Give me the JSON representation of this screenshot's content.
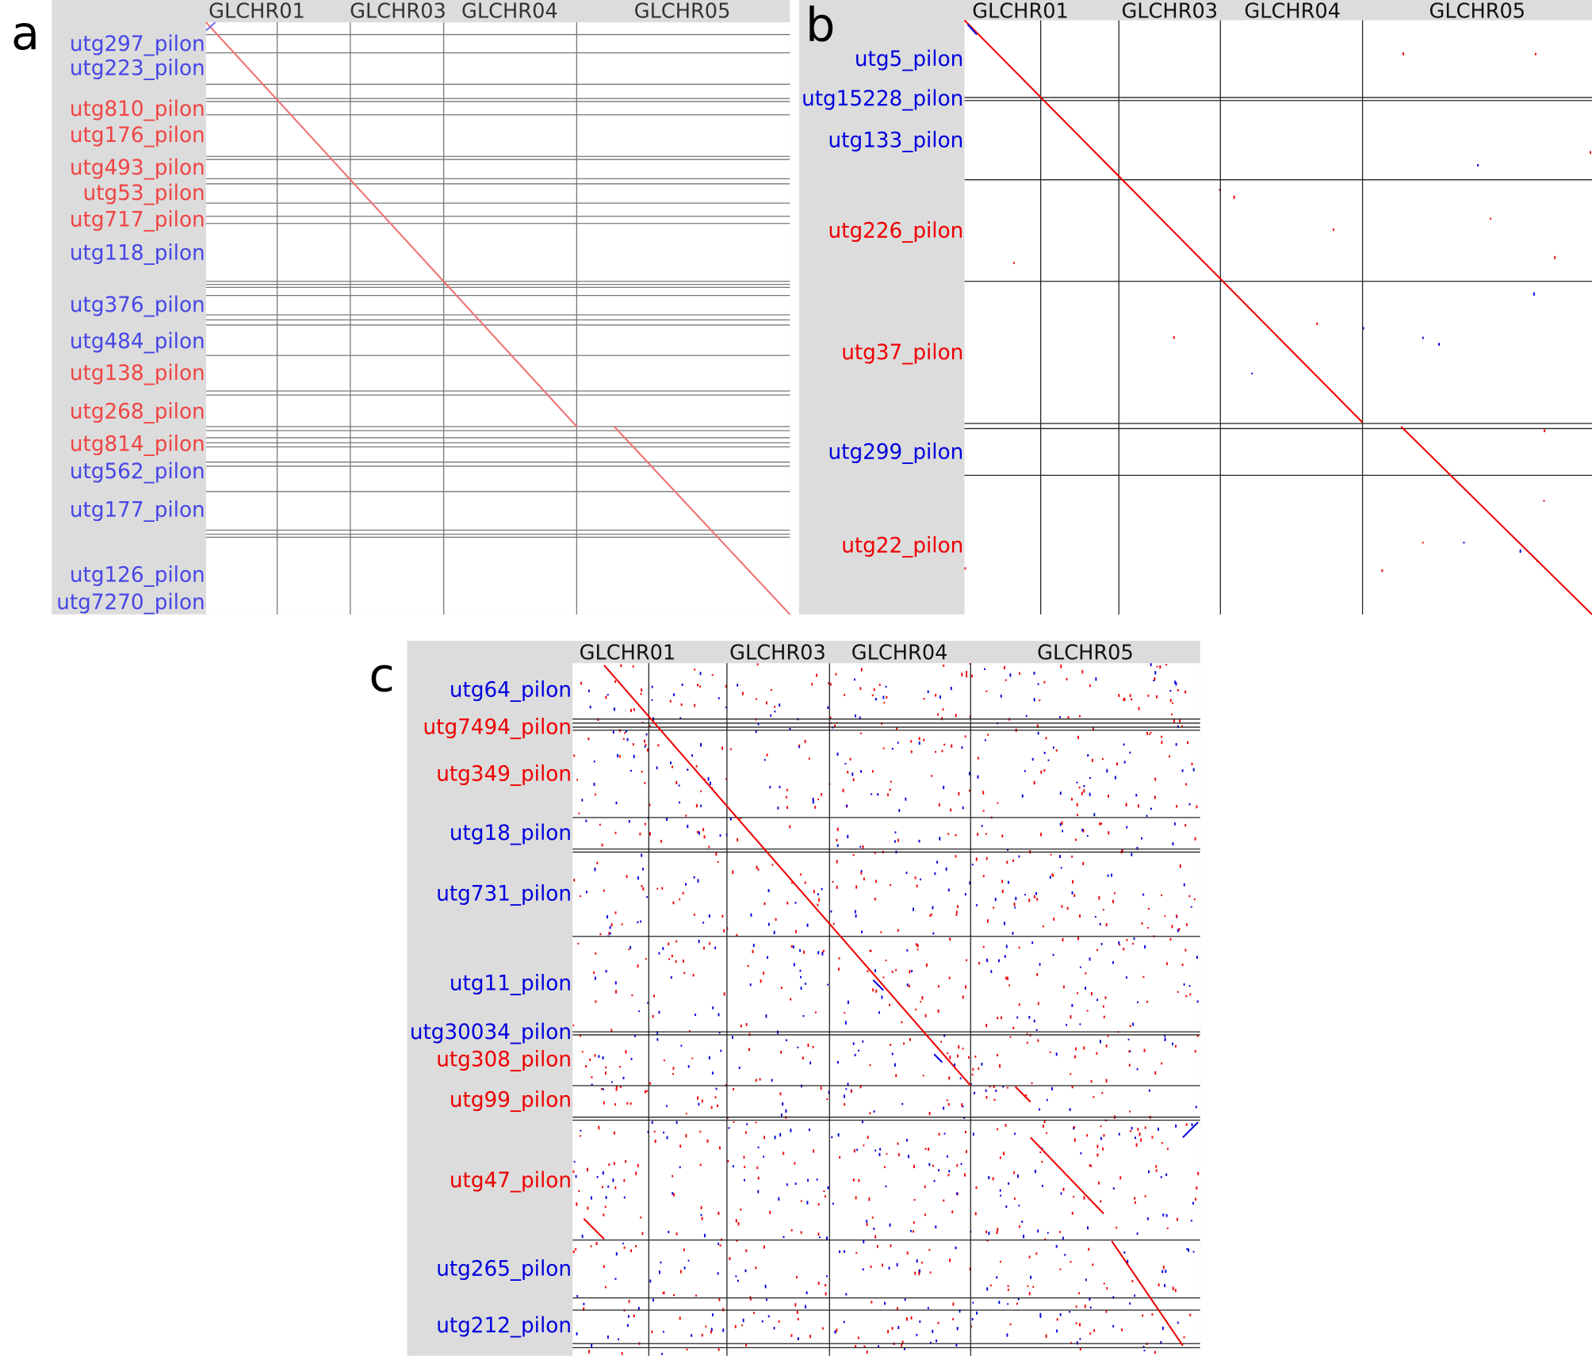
{
  "panels": [
    {
      "letter": "a",
      "columns": [
        "GLCHR01",
        "GLCHR03",
        "GLCHR04",
        "GLCHR05"
      ],
      "rows": [
        {
          "label": "utg297_pilon",
          "color": "#4646e6"
        },
        {
          "label": "utg223_pilon",
          "color": "#4646e6"
        },
        {
          "label": "utg810_pilon",
          "color": "#f04444"
        },
        {
          "label": "utg176_pilon",
          "color": "#f04444"
        },
        {
          "label": "utg493_pilon",
          "color": "#f04444"
        },
        {
          "label": "utg53_pilon",
          "color": "#f04444"
        },
        {
          "label": "utg717_pilon",
          "color": "#f04444"
        },
        {
          "label": "utg118_pilon",
          "color": "#4646e6"
        },
        {
          "label": "utg376_pilon",
          "color": "#4646e6"
        },
        {
          "label": "utg484_pilon",
          "color": "#4646e6"
        },
        {
          "label": "utg138_pilon",
          "color": "#f04444"
        },
        {
          "label": "utg268_pilon",
          "color": "#f04444"
        },
        {
          "label": "utg814_pilon",
          "color": "#f04444"
        },
        {
          "label": "utg562_pilon",
          "color": "#4646e6"
        },
        {
          "label": "utg177_pilon",
          "color": "#4646e6"
        },
        {
          "label": "utg126_pilon",
          "color": "#4646e6"
        },
        {
          "label": "utg7270_pilon",
          "color": "#4646e6"
        }
      ]
    },
    {
      "letter": "b",
      "columns": [
        "GLCHR01",
        "GLCHR03",
        "GLCHR04",
        "GLCHR05"
      ],
      "rows": [
        {
          "label": "utg5_pilon",
          "color": "#0000dd"
        },
        {
          "label": "utg15228_pilon",
          "color": "#0000dd"
        },
        {
          "label": "utg133_pilon",
          "color": "#0000dd"
        },
        {
          "label": "utg226_pilon",
          "color": "#ee0000"
        },
        {
          "label": "utg37_pilon",
          "color": "#ee0000"
        },
        {
          "label": "utg299_pilon",
          "color": "#0000dd"
        },
        {
          "label": "utg22_pilon",
          "color": "#ee0000"
        }
      ]
    },
    {
      "letter": "c",
      "columns": [
        "GLCHR01",
        "GLCHR03",
        "GLCHR04",
        "GLCHR05"
      ],
      "rows": [
        {
          "label": "utg64_pilon",
          "color": "#0000dd"
        },
        {
          "label": "utg7494_pilon",
          "color": "#ee0000"
        },
        {
          "label": "utg349_pilon",
          "color": "#ee0000"
        },
        {
          "label": "utg18_pilon",
          "color": "#0000dd"
        },
        {
          "label": "utg731_pilon",
          "color": "#0000dd"
        },
        {
          "label": "utg11_pilon",
          "color": "#0000dd"
        },
        {
          "label": "utg30034_pilon",
          "color": "#0000dd"
        },
        {
          "label": "utg308_pilon",
          "color": "#ee0000"
        },
        {
          "label": "utg99_pilon",
          "color": "#ee0000"
        },
        {
          "label": "utg47_pilon",
          "color": "#ee0000"
        },
        {
          "label": "utg265_pilon",
          "color": "#0000dd"
        },
        {
          "label": "utg212_pilon",
          "color": "#0000dd"
        }
      ]
    }
  ]
}
